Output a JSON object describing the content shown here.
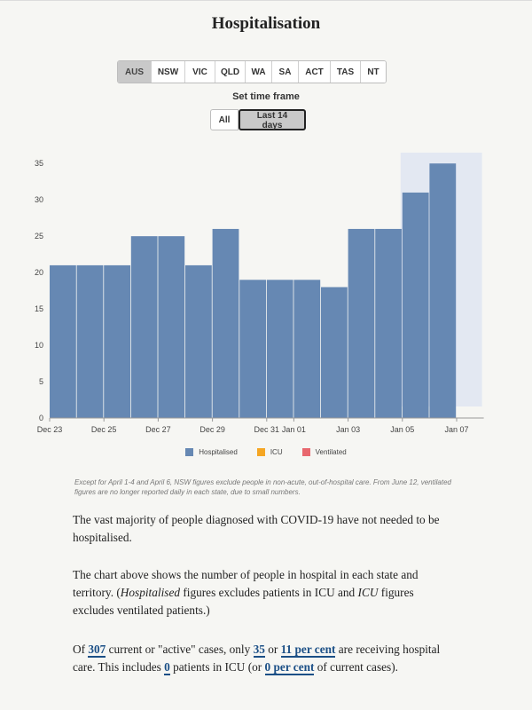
{
  "title": "Hospitalisation",
  "states": [
    "AUS",
    "NSW",
    "VIC",
    "QLD",
    "WA",
    "SA",
    "ACT",
    "TAS",
    "NT"
  ],
  "active_state": "AUS",
  "timeframe": {
    "label": "Set time frame",
    "options": [
      "All",
      "Last 14 days"
    ],
    "active": "Last 14 days"
  },
  "colors": {
    "hospitalised": "#6688b3",
    "icu": "#f5a623",
    "ventilated": "#e8676e",
    "highlight": "#e3e8f2"
  },
  "chart_data": {
    "type": "bar",
    "categories": [
      "Dec 23",
      "Dec 24",
      "Dec 25",
      "Dec 26",
      "Dec 27",
      "Dec 28",
      "Dec 29",
      "Dec 30",
      "Dec 31",
      "Jan 01",
      "Jan 02",
      "Jan 03",
      "Jan 04",
      "Jan 05",
      "Jan 06"
    ],
    "x_tick_labels": [
      "Dec 23",
      "Dec 25",
      "Dec 27",
      "Dec 29",
      "Dec 31",
      "Jan 01",
      "Jan 03",
      "Jan 05",
      "Jan 07"
    ],
    "series": [
      {
        "name": "Hospitalised",
        "values": [
          21,
          21,
          21,
          25,
          25,
          21,
          26,
          19,
          19,
          19,
          18,
          26,
          26,
          31,
          35
        ]
      },
      {
        "name": "ICU",
        "values": [
          0,
          0,
          0,
          0,
          0,
          0,
          0,
          0,
          0,
          0,
          0,
          0,
          0,
          0,
          0
        ]
      },
      {
        "name": "Ventilated",
        "values": [
          0,
          0,
          0,
          0,
          0,
          0,
          0,
          0,
          0,
          0,
          0,
          0,
          0,
          0,
          0
        ]
      }
    ],
    "y_ticks": [
      0,
      5,
      10,
      15,
      20,
      25,
      30,
      35
    ],
    "ylim": [
      0,
      36
    ],
    "highlight_range": [
      "Jan 05",
      "Jan 07"
    ],
    "legend": [
      "Hospitalised",
      "ICU",
      "Ventilated"
    ],
    "legend_position": "bottom",
    "grid": false
  },
  "note": "Except for April 1-4 and April 6, NSW figures exclude people in non-acute, out-of-hospital care. From June 12, ventilated figures are no longer reported daily in each state, due to small numbers.",
  "paragraph1": "The vast majority of people diagnosed with COVID-19 have not needed to be hospitalised.",
  "paragraph2": {
    "t1": "The chart above shows the number of people in hospital in each state and territory. (",
    "em1": "Hospitalised",
    "t2": " figures excludes patients in ICU and ",
    "em2": "ICU",
    "t3": " figures excludes ventilated patients.)"
  },
  "paragraph3": {
    "t1": "Of ",
    "active_cases": "307",
    "t2": " current or \"active\" cases, only ",
    "hospital_count": "35",
    "t3": " or ",
    "hospital_pct": "11 per cent",
    "t4": " are receiving hospital care. This includes ",
    "icu_count": "0",
    "t5": " patients in ICU (or ",
    "icu_pct": "0 per cent",
    "t6": " of current cases)."
  }
}
